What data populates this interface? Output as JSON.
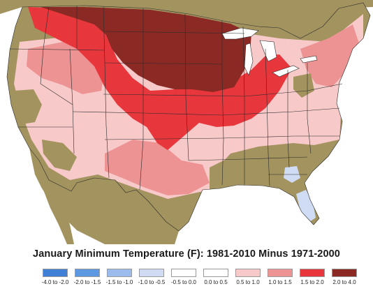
{
  "title": "January Minimum Temperature (F): 1981-2010 Minus 1971-2000",
  "legend": [
    {
      "label": "-4.0 to -2.0",
      "color": "#3f7fd6"
    },
    {
      "label": "-2.0 to -1.5",
      "color": "#5c97e2"
    },
    {
      "label": "-1.5 to -1.0",
      "color": "#9bbcec"
    },
    {
      "label": "-1.0 to -0.5",
      "color": "#cfdcf3"
    },
    {
      "label": "-0.5 to 0.0",
      "color": "#ffffff"
    },
    {
      "label": "0.0 to 0.5",
      "color": "#ffffff"
    },
    {
      "label": "0.5 to 1.0",
      "color": "#f7c9c9"
    },
    {
      "label": "1.0 to 1.5",
      "color": "#ee9393"
    },
    {
      "label": "1.5 to 2.0",
      "color": "#e8373c"
    },
    {
      "label": "2.0 to 4.0",
      "color": "#8b2a24"
    }
  ],
  "colors": {
    "terrain": "#a3935f",
    "terrain_shadow": "#8c7d4d",
    "ocean": "#ffffff",
    "state_borders": "#2b2b2b"
  }
}
